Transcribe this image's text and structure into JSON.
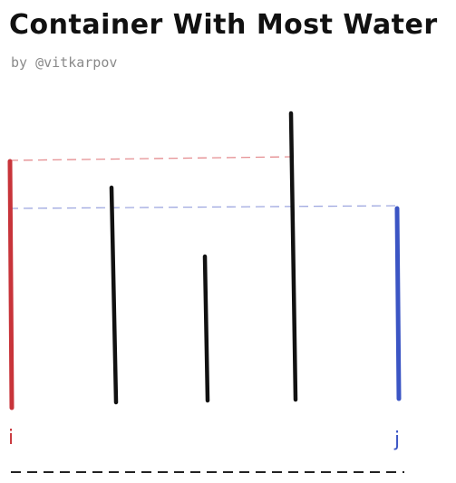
{
  "header": {
    "title": "Container With Most Water",
    "byline": "by @vitkarpov"
  },
  "diagram": {
    "bars": [
      {
        "role": "left-pointer",
        "color": "#c8343a"
      },
      {
        "role": "line",
        "color": "#111111"
      },
      {
        "role": "line",
        "color": "#111111"
      },
      {
        "role": "line",
        "color": "#111111"
      },
      {
        "role": "right-pointer",
        "color": "#3b55c4"
      }
    ],
    "pointer_labels": {
      "left": "i",
      "right": "j"
    },
    "guide_colors": {
      "red": "#e58f92",
      "blue": "#9fa8e0"
    },
    "baseline_color": "#222222"
  }
}
